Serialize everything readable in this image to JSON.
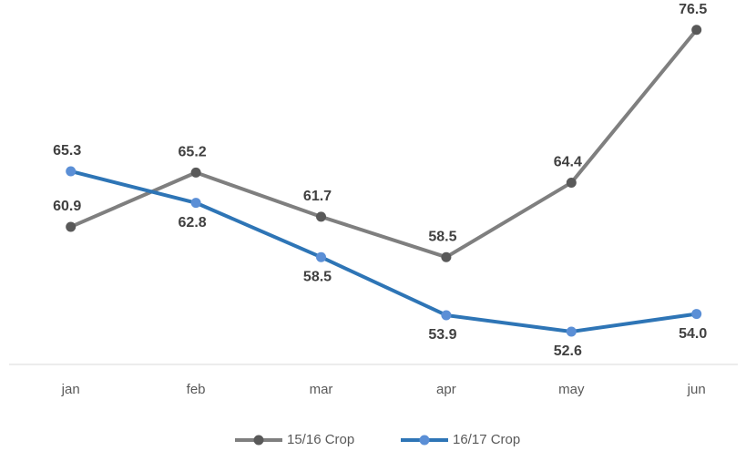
{
  "chart_data": {
    "type": "line",
    "categories": [
      "jan",
      "feb",
      "mar",
      "apr",
      "may",
      "jun"
    ],
    "series": [
      {
        "name": "15/16 Crop",
        "color": "#7f7f7f",
        "marker_color": "#595959",
        "values": [
          60.9,
          65.2,
          61.7,
          58.5,
          64.4,
          76.5
        ],
        "value_labels": [
          "60.9",
          "65.2",
          "61.7",
          "58.5",
          "64.4",
          "76.5"
        ]
      },
      {
        "name": "16/17 Crop",
        "color": "#2e75b6",
        "marker_color": "#5b8fd6",
        "values": [
          65.3,
          62.8,
          58.5,
          53.9,
          52.6,
          54.0
        ],
        "value_labels": [
          "65.3",
          "62.8",
          "58.5",
          "53.9",
          "52.6",
          "54.0"
        ]
      }
    ],
    "ylim": [
      50,
      78
    ],
    "legend": "bottom"
  }
}
